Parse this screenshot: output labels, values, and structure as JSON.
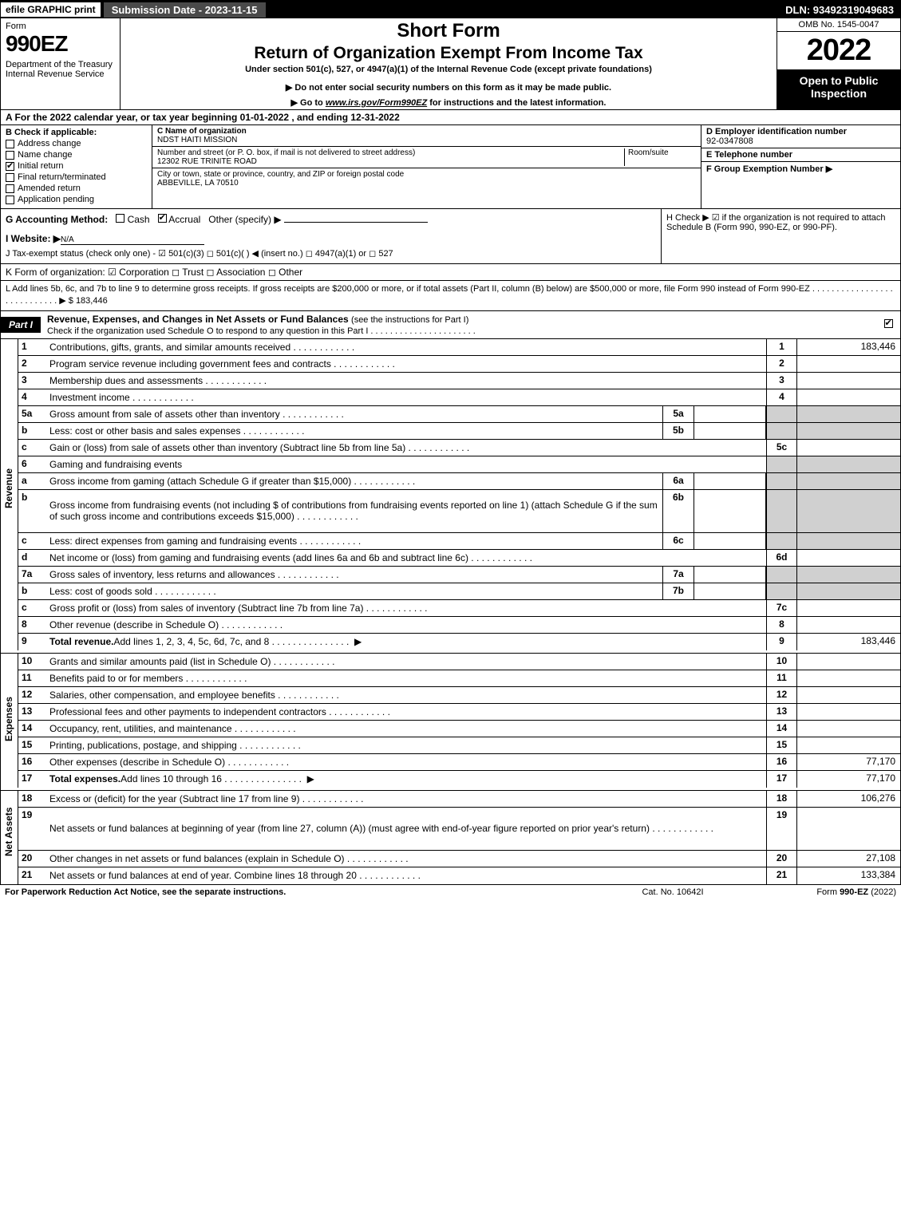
{
  "topbar": {
    "efile": "efile GRAPHIC print",
    "submission": "Submission Date - 2023-11-15",
    "dln": "DLN: 93492319049683"
  },
  "header": {
    "form_label": "Form",
    "form_number": "990EZ",
    "dept": "Department of the Treasury\nInternal Revenue Service",
    "short_form": "Short Form",
    "return_title": "Return of Organization Exempt From Income Tax",
    "under": "Under section 501(c), 527, or 4947(a)(1) of the Internal Revenue Code (except private foundations)",
    "inst1": "▶ Do not enter social security numbers on this form as it may be made public.",
    "inst2": "▶ Go to www.irs.gov/Form990EZ for instructions and the latest information.",
    "omb": "OMB No. 1545-0047",
    "year": "2022",
    "open": "Open to Public Inspection"
  },
  "row_a": "A  For the 2022 calendar year, or tax year beginning 01-01-2022 , and ending 12-31-2022",
  "col_b": {
    "label": "B  Check if applicable:",
    "items": [
      {
        "txt": "Address change",
        "chk": false
      },
      {
        "txt": "Name change",
        "chk": false
      },
      {
        "txt": "Initial return",
        "chk": true
      },
      {
        "txt": "Final return/terminated",
        "chk": false
      },
      {
        "txt": "Amended return",
        "chk": false
      },
      {
        "txt": "Application pending",
        "chk": false
      }
    ]
  },
  "col_c": {
    "name_lbl": "C Name of organization",
    "name": "NDST HAITI MISSION",
    "street_lbl": "Number and street (or P. O. box, if mail is not delivered to street address)",
    "room_lbl": "Room/suite",
    "street": "12302 RUE TRINITE ROAD",
    "city_lbl": "City or town, state or province, country, and ZIP or foreign postal code",
    "city": "ABBEVILLE, LA   70510"
  },
  "col_d": {
    "ein_lbl": "D Employer identification number",
    "ein": "92-0347808",
    "tel_lbl": "E Telephone number",
    "tel": "",
    "grp_lbl": "F Group Exemption Number   ▶",
    "grp": ""
  },
  "row_g": {
    "label": "G Accounting Method:",
    "cash": "Cash",
    "accrual": "Accrual",
    "other": "Other (specify) ▶"
  },
  "row_h": "H  Check ▶ ☑ if the organization is not required to attach Schedule B (Form 990, 990-EZ, or 990-PF).",
  "row_i": {
    "label": "I Website: ▶",
    "val": "N/A"
  },
  "row_j": "J Tax-exempt status (check only one) - ☑ 501(c)(3)  ◻ 501(c)(  ) ◀ (insert no.)  ◻ 4947(a)(1) or  ◻ 527",
  "row_k": "K Form of organization:   ☑ Corporation   ◻ Trust   ◻ Association   ◻ Other",
  "row_l": {
    "text": "L Add lines 5b, 6c, and 7b to line 9 to determine gross receipts. If gross receipts are $200,000 or more, or if total assets (Part II, column (B) below) are $500,000 or more, file Form 990 instead of Form 990-EZ  .  .  .  .  .  .  .  .  .  .  .  .  .  .  .  .  .  .  .  .  .  .  .  .  .  .  .  .  ▶ $",
    "amt": "183,446"
  },
  "part1": {
    "label": "Part I",
    "title": "Revenue, Expenses, and Changes in Net Assets or Fund Balances",
    "instr": "(see the instructions for Part I)",
    "sub": "Check if the organization used Schedule O to respond to any question in this Part I  .  .  .  .  .  .  .  .  .  .  .  .  .  .  .  .  .  .  .  .  .  ."
  },
  "sections": {
    "revenue": "Revenue",
    "expenses": "Expenses",
    "netassets": "Net Assets"
  },
  "lines": [
    {
      "n": "1",
      "d": "Contributions, gifts, grants, and similar amounts received",
      "nc": "1",
      "v": "183,446"
    },
    {
      "n": "2",
      "d": "Program service revenue including government fees and contracts",
      "nc": "2",
      "v": ""
    },
    {
      "n": "3",
      "d": "Membership dues and assessments",
      "nc": "3",
      "v": ""
    },
    {
      "n": "4",
      "d": "Investment income",
      "nc": "4",
      "v": ""
    },
    {
      "n": "5a",
      "d": "Gross amount from sale of assets other than inventory",
      "sub": "5a",
      "shadenum": true
    },
    {
      "n": "b",
      "d": "Less: cost or other basis and sales expenses",
      "sub": "5b",
      "shadenum": true
    },
    {
      "n": "c",
      "d": "Gain or (loss) from sale of assets other than inventory (Subtract line 5b from line 5a)",
      "nc": "5c",
      "v": ""
    },
    {
      "n": "6",
      "d": "Gaming and fundraising events",
      "shadenum": true,
      "shadeval": true
    },
    {
      "n": "a",
      "d": "Gross income from gaming (attach Schedule G if greater than $15,000)",
      "sub": "6a",
      "shadenum": true
    },
    {
      "n": "b",
      "d": "Gross income from fundraising events (not including $                           of contributions from fundraising events reported on line 1) (attach Schedule G if the sum of such gross income and contributions exceeds $15,000)",
      "sub": "6b",
      "shadenum": true,
      "tall": true
    },
    {
      "n": "c",
      "d": "Less: direct expenses from gaming and fundraising events",
      "sub": "6c",
      "shadenum": true
    },
    {
      "n": "d",
      "d": "Net income or (loss) from gaming and fundraising events (add lines 6a and 6b and subtract line 6c)",
      "nc": "6d",
      "v": ""
    },
    {
      "n": "7a",
      "d": "Gross sales of inventory, less returns and allowances",
      "sub": "7a",
      "shadenum": true
    },
    {
      "n": "b",
      "d": "Less: cost of goods sold",
      "sub": "7b",
      "shadenum": true
    },
    {
      "n": "c",
      "d": "Gross profit or (loss) from sales of inventory (Subtract line 7b from line 7a)",
      "nc": "7c",
      "v": ""
    },
    {
      "n": "8",
      "d": "Other revenue (describe in Schedule O)",
      "nc": "8",
      "v": ""
    },
    {
      "n": "9",
      "d": "Total revenue. Add lines 1, 2, 3, 4, 5c, 6d, 7c, and 8",
      "nc": "9",
      "v": "183,446",
      "bold": true,
      "arrow": true
    }
  ],
  "exp_lines": [
    {
      "n": "10",
      "d": "Grants and similar amounts paid (list in Schedule O)",
      "nc": "10",
      "v": ""
    },
    {
      "n": "11",
      "d": "Benefits paid to or for members",
      "nc": "11",
      "v": ""
    },
    {
      "n": "12",
      "d": "Salaries, other compensation, and employee benefits",
      "nc": "12",
      "v": ""
    },
    {
      "n": "13",
      "d": "Professional fees and other payments to independent contractors",
      "nc": "13",
      "v": ""
    },
    {
      "n": "14",
      "d": "Occupancy, rent, utilities, and maintenance",
      "nc": "14",
      "v": ""
    },
    {
      "n": "15",
      "d": "Printing, publications, postage, and shipping",
      "nc": "15",
      "v": ""
    },
    {
      "n": "16",
      "d": "Other expenses (describe in Schedule O)",
      "nc": "16",
      "v": "77,170"
    },
    {
      "n": "17",
      "d": "Total expenses. Add lines 10 through 16",
      "nc": "17",
      "v": "77,170",
      "bold": true,
      "arrow": true
    }
  ],
  "na_lines": [
    {
      "n": "18",
      "d": "Excess or (deficit) for the year (Subtract line 17 from line 9)",
      "nc": "18",
      "v": "106,276"
    },
    {
      "n": "19",
      "d": "Net assets or fund balances at beginning of year (from line 27, column (A)) (must agree with end-of-year figure reported on prior year's return)",
      "nc": "19",
      "v": "",
      "tall": true
    },
    {
      "n": "20",
      "d": "Other changes in net assets or fund balances (explain in Schedule O)",
      "nc": "20",
      "v": "27,108"
    },
    {
      "n": "21",
      "d": "Net assets or fund balances at end of year. Combine lines 18 through 20",
      "nc": "21",
      "v": "133,384"
    }
  ],
  "footer": {
    "left": "For Paperwork Reduction Act Notice, see the separate instructions.",
    "mid": "Cat. No. 10642I",
    "right": "Form 990-EZ (2022)"
  },
  "colors": {
    "black": "#000000",
    "white": "#ffffff",
    "topbar_gray": "#4a4a4a",
    "shade": "#d0d0d0"
  }
}
